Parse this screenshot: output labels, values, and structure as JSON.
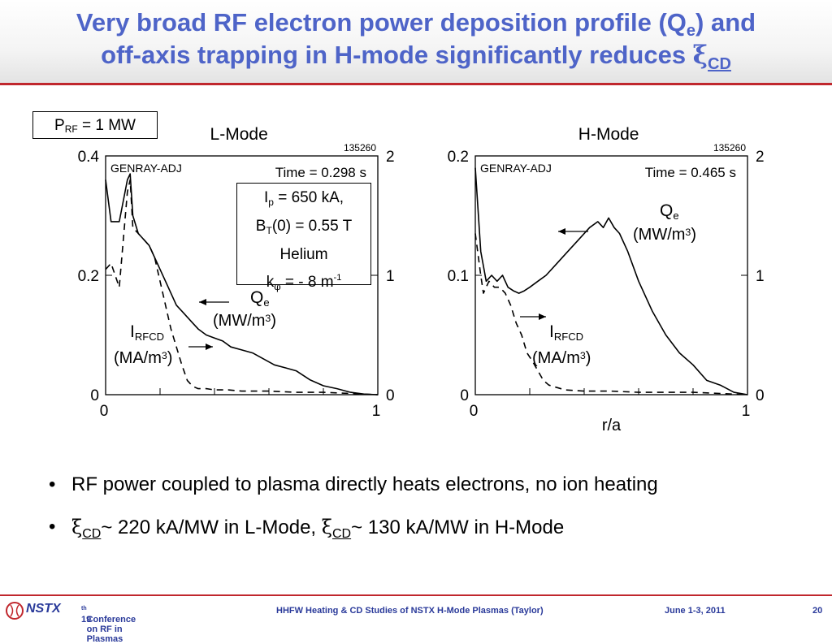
{
  "slide": {
    "title_line1_a": "Very broad RF electron power deposition profile (Q",
    "title_line1_sub": "e",
    "title_line1_b": ") and",
    "title_line2_a": "off-axis trapping in H-mode significantly reduces ",
    "xi_symbol": "ξ",
    "cd_sub": "CD"
  },
  "power_box": {
    "p": "P",
    "sub": "RF",
    "rest": " = 1 MW"
  },
  "params": {
    "ip_a": "I",
    "ip_sub": "p",
    "ip_b": " = 650 kA,",
    "bt_a": "B",
    "bt_sub": "T",
    "bt_b": "(0) = 0.55 T",
    "gas": "Helium",
    "k_a": "k",
    "k_sub": "φ",
    "k_b": " = - 8 m",
    "k_sup": "-1"
  },
  "bullets": [
    {
      "text": "RF power coupled to plasma directly heats electrons, no ion heating"
    },
    {
      "part1": "~ 220 kA/MW in L-Mode, ",
      "part2": "~ 130 kA/MW in H-Mode"
    }
  ],
  "footer": {
    "logo": "NSTX",
    "conf_a": "19",
    "conf_sup": "th",
    "conf_b": " Conference on RF in Plasmas",
    "talk": "HHFW Heating & CD Studies of NSTX H-Mode Plasmas (Taylor)",
    "date": "June 1-3, 2011",
    "page": "20"
  },
  "colors": {
    "title": "#4e64c8",
    "rule": "#c0272d",
    "footer_text": "#2a3a9a"
  },
  "chart_data": [
    {
      "type": "line",
      "title": "L-Mode",
      "shot": "135260",
      "code_label": "GENRAY-ADJ",
      "time_label": "Time = 0.298 s",
      "xlim": [
        0,
        1
      ],
      "ylim_left": [
        0,
        0.4
      ],
      "ylim_right": [
        0,
        2
      ],
      "x_ticks": [
        "0",
        "1"
      ],
      "y_left_ticks": [
        "0",
        "0.2",
        "0.4"
      ],
      "y_right_ticks": [
        "0",
        "1",
        "2"
      ],
      "qe_label": "Q",
      "qe_sub": "e",
      "qe_unit": "(MW/m",
      "qe_unit_sup": "3",
      "qe_unit_end": ")",
      "irf_label": "I",
      "irf_sub": "RFCD",
      "irf_unit": "(MA/m",
      "irf_unit_sup": "3",
      "irf_unit_end": ")",
      "series": [
        {
          "name": "Q",
          "axis": "left",
          "style": "solid",
          "x": [
            0.0,
            0.02,
            0.05,
            0.08,
            0.09,
            0.1,
            0.12,
            0.14,
            0.16,
            0.18,
            0.2,
            0.22,
            0.24,
            0.26,
            0.28,
            0.3,
            0.32,
            0.34,
            0.37,
            0.4,
            0.43,
            0.46,
            0.5,
            0.54,
            0.58,
            0.62,
            0.66,
            0.7,
            0.75,
            0.8,
            0.85,
            0.9,
            0.95,
            1.0
          ],
          "y": [
            0.36,
            0.29,
            0.29,
            0.36,
            0.37,
            0.3,
            0.27,
            0.26,
            0.25,
            0.23,
            0.21,
            0.19,
            0.17,
            0.15,
            0.14,
            0.13,
            0.12,
            0.11,
            0.1,
            0.095,
            0.09,
            0.08,
            0.075,
            0.07,
            0.06,
            0.05,
            0.045,
            0.04,
            0.025,
            0.015,
            0.01,
            0.004,
            0.001,
            0.0
          ]
        },
        {
          "name": "I",
          "axis": "right",
          "style": "dashed",
          "x": [
            0.0,
            0.02,
            0.05,
            0.08,
            0.09,
            0.1,
            0.12,
            0.14,
            0.16,
            0.18,
            0.2,
            0.22,
            0.24,
            0.26,
            0.28,
            0.3,
            0.32,
            0.34,
            0.37,
            0.4,
            0.45,
            0.5,
            0.6,
            0.7,
            0.8,
            0.9,
            1.0
          ],
          "y": [
            1.05,
            1.1,
            0.9,
            1.7,
            1.8,
            1.4,
            1.35,
            1.3,
            1.25,
            1.15,
            0.95,
            0.75,
            0.55,
            0.4,
            0.25,
            0.12,
            0.07,
            0.05,
            0.05,
            0.04,
            0.04,
            0.03,
            0.03,
            0.02,
            0.02,
            0.01,
            0.0
          ]
        }
      ]
    },
    {
      "type": "line",
      "title": "H-Mode",
      "shot": "135260",
      "code_label": "GENRAY-ADJ",
      "time_label": "Time = 0.465 s",
      "xlabel": "r/a",
      "xlim": [
        0,
        1
      ],
      "ylim_left": [
        0,
        0.2
      ],
      "ylim_right": [
        0,
        2
      ],
      "x_ticks": [
        "0",
        "1"
      ],
      "y_left_ticks": [
        "0",
        "0.1",
        "0.2"
      ],
      "y_right_ticks": [
        "0",
        "1",
        "2"
      ],
      "qe_label": "Q",
      "qe_sub": "e",
      "qe_unit": "(MW/m",
      "qe_unit_sup": "3",
      "qe_unit_end": ")",
      "irf_label": "I",
      "irf_sub": "RFCD",
      "irf_unit": "(MA/m",
      "irf_unit_sup": "3",
      "irf_unit_end": ")",
      "series": [
        {
          "name": "Q",
          "axis": "left",
          "style": "solid",
          "x": [
            0.0,
            0.02,
            0.04,
            0.06,
            0.08,
            0.1,
            0.12,
            0.14,
            0.16,
            0.18,
            0.2,
            0.23,
            0.26,
            0.3,
            0.34,
            0.38,
            0.42,
            0.45,
            0.47,
            0.49,
            0.51,
            0.53,
            0.56,
            0.6,
            0.65,
            0.7,
            0.75,
            0.8,
            0.85,
            0.9,
            0.95,
            1.0
          ],
          "y": [
            0.19,
            0.12,
            0.095,
            0.1,
            0.095,
            0.1,
            0.09,
            0.087,
            0.085,
            0.087,
            0.09,
            0.095,
            0.1,
            0.11,
            0.12,
            0.13,
            0.14,
            0.145,
            0.14,
            0.148,
            0.14,
            0.135,
            0.12,
            0.095,
            0.07,
            0.05,
            0.035,
            0.025,
            0.012,
            0.008,
            0.002,
            0.0
          ]
        },
        {
          "name": "I",
          "axis": "right",
          "style": "dashed",
          "x": [
            0.0,
            0.02,
            0.03,
            0.05,
            0.07,
            0.09,
            0.11,
            0.13,
            0.15,
            0.17,
            0.19,
            0.21,
            0.23,
            0.25,
            0.27,
            0.3,
            0.33,
            0.4,
            0.5,
            0.6,
            0.7,
            0.8,
            0.9,
            1.0
          ],
          "y": [
            1.35,
            1.0,
            0.85,
            0.95,
            0.9,
            0.9,
            0.85,
            0.75,
            0.6,
            0.5,
            0.35,
            0.28,
            0.2,
            0.12,
            0.08,
            0.06,
            0.04,
            0.03,
            0.03,
            0.02,
            0.02,
            0.02,
            0.01,
            0.0
          ]
        }
      ]
    }
  ]
}
